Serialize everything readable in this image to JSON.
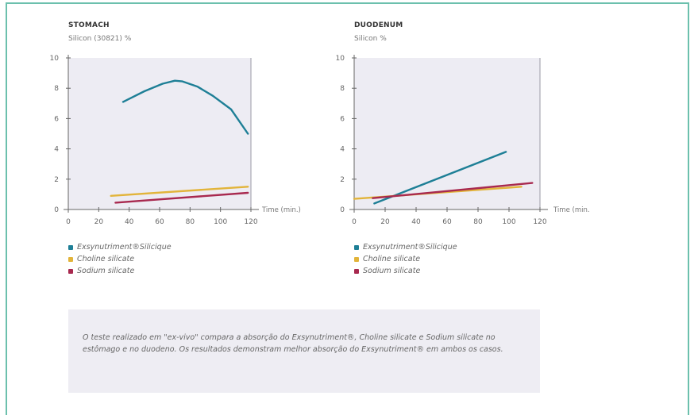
{
  "colors": {
    "frame": "#6cc0ad",
    "plot_bg": "#edecf3",
    "blue": "#1e7f96",
    "yellow": "#e2b43a",
    "red": "#a8294f"
  },
  "legend": {
    "items": [
      {
        "label": "Exsynutriment®Silicique",
        "color": "#1e7f96"
      },
      {
        "label": "Choline silicate",
        "color": "#e2b43a"
      },
      {
        "label": "Sodium silicate",
        "color": "#a8294f"
      }
    ]
  },
  "note": "O teste realizado em \"ex-vivo\" compara a absorção do Exsynutriment®, Choline silicate e Sodium silicate no estômago e no duodeno. Os resultados demonstram melhor absorção do Exsynutriment® em ambos os casos.",
  "chart_data": [
    {
      "type": "line",
      "title": "STOMACH",
      "ylabel": "Silicon (30821) %",
      "xlabel": "Time (min.)",
      "xlim": [
        0,
        120
      ],
      "ylim": [
        0,
        10
      ],
      "xticks": [
        0,
        20,
        40,
        60,
        80,
        100,
        120
      ],
      "yticks": [
        0,
        2,
        4,
        6,
        8,
        10
      ],
      "grid": false,
      "series": [
        {
          "name": "Exsynutriment®Silicique",
          "color": "#1e7f96",
          "x": [
            36,
            50,
            62,
            70,
            75,
            85,
            95,
            107,
            118
          ],
          "y": [
            7.1,
            7.8,
            8.3,
            8.5,
            8.45,
            8.1,
            7.5,
            6.6,
            5.0
          ]
        },
        {
          "name": "Choline silicate",
          "color": "#e2b43a",
          "x": [
            28,
            118
          ],
          "y": [
            0.9,
            1.5
          ]
        },
        {
          "name": "Sodium silicate",
          "color": "#a8294f",
          "x": [
            31,
            118
          ],
          "y": [
            0.45,
            1.1
          ]
        }
      ]
    },
    {
      "type": "line",
      "title": "DUODENUM",
      "ylabel": "Silicon %",
      "xlabel": "Time (min.",
      "xlim": [
        0,
        120
      ],
      "ylim": [
        0,
        10
      ],
      "xticks": [
        0,
        20,
        40,
        60,
        80,
        100,
        120
      ],
      "yticks": [
        0,
        2,
        4,
        6,
        8,
        10
      ],
      "grid": false,
      "series": [
        {
          "name": "Exsynutriment®Silicique",
          "color": "#1e7f96",
          "x": [
            13,
            98
          ],
          "y": [
            0.4,
            3.8
          ]
        },
        {
          "name": "Choline silicate",
          "color": "#e2b43a",
          "x": [
            0,
            108
          ],
          "y": [
            0.7,
            1.5
          ]
        },
        {
          "name": "Sodium silicate",
          "color": "#a8294f",
          "x": [
            12,
            115
          ],
          "y": [
            0.75,
            1.75
          ]
        }
      ]
    }
  ]
}
